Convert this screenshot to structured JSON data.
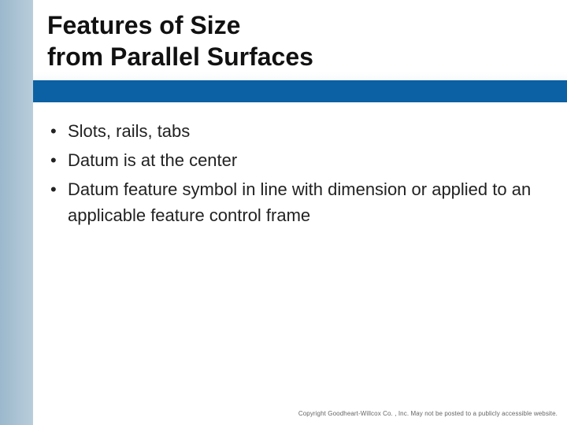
{
  "title": {
    "line1": "Features of Size",
    "line2": "from Parallel Surfaces"
  },
  "bullets": [
    "Slots, rails, tabs",
    "Datum is at the center",
    "Datum feature symbol in line with dimension or applied to an applicable feature control frame"
  ],
  "footer": "Copyright Goodheart-Willcox Co. , Inc. May not be posted to a publicly accessible website.",
  "styles": {
    "left_stripe_gradient_start": "#9bb8cc",
    "left_stripe_gradient_end": "#b9cddb",
    "title_band_blue": "#0b61a4",
    "title_color": "#111111",
    "title_fontsize": 32,
    "title_fontweight": 700,
    "bullet_color": "#222222",
    "bullet_fontsize": 22,
    "footer_color": "#666666",
    "footer_fontsize": 8,
    "background_color": "#ffffff",
    "slide_width": 720,
    "slide_height": 540,
    "left_stripe_width": 42,
    "title_band_height": 130
  }
}
